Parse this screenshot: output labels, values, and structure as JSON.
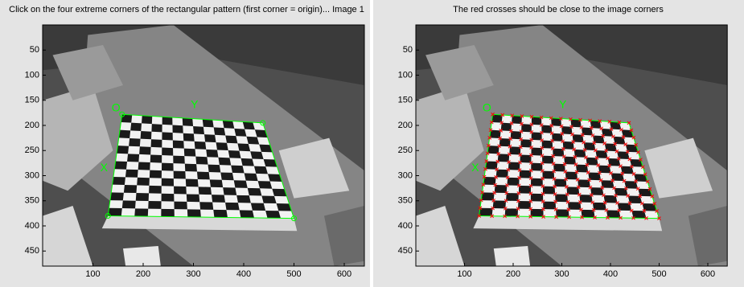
{
  "panels": [
    {
      "title": "Click on the four extreme corners of the rectangular pattern (first corner = origin)... Image 1",
      "xticks": [
        100,
        200,
        300,
        400,
        500,
        600
      ],
      "yticks": [
        50,
        100,
        150,
        200,
        250,
        300,
        350,
        400,
        450
      ],
      "markers": {
        "origin": "O",
        "x": "X",
        "y": "Y"
      }
    },
    {
      "title": "The red crosses should be close to the image corners",
      "xticks": [
        100,
        200,
        300,
        400,
        500,
        600
      ],
      "yticks": [
        50,
        100,
        150,
        200,
        250,
        300,
        350,
        400,
        450
      ],
      "markers": {
        "origin": "O",
        "x": "X",
        "y": "Y"
      }
    }
  ]
}
